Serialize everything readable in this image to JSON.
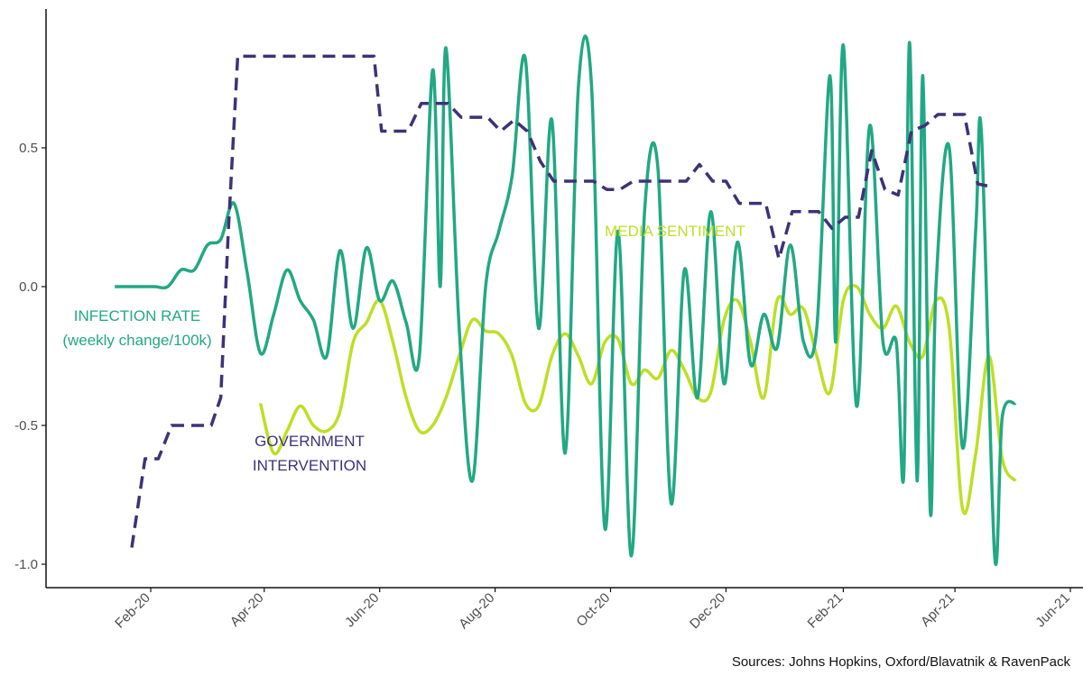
{
  "chart_data": {
    "type": "line",
    "title": "",
    "xlabel": "",
    "ylabel": "",
    "ylim": [
      -1.05,
      0.92
    ],
    "xlim": [
      "2020-01-01",
      "2021-06-01"
    ],
    "grid": false,
    "legend": "none (direct labels)",
    "y_ticks": [
      -1.0,
      -0.5,
      0.0,
      0.5
    ],
    "y_tick_labels": [
      "-1.0",
      "-0.5",
      "0.0",
      "0.5"
    ],
    "x_ticks": [
      "2020-02-01",
      "2020-04-01",
      "2020-06-01",
      "2020-08-01",
      "2020-10-01",
      "2020-12-01",
      "2021-02-01",
      "2021-04-01",
      "2021-06-01"
    ],
    "x_tick_labels": [
      "Feb-20",
      "Apr-20",
      "Jun-20",
      "Aug-20",
      "Oct-20",
      "Dec-20",
      "Feb-21",
      "Apr-21",
      "Jun-21"
    ],
    "series": [
      {
        "key": "infection",
        "label_lines": [
          "INFECTION RATE",
          "(weekly change/100k)"
        ],
        "color": "#22a884",
        "style": "solid",
        "points": [
          [
            "2020-01-13",
            0.0
          ],
          [
            "2020-01-20",
            0.0
          ],
          [
            "2020-01-27",
            0.0
          ],
          [
            "2020-02-03",
            0.0
          ],
          [
            "2020-02-10",
            0.0
          ],
          [
            "2020-02-17",
            0.06
          ],
          [
            "2020-02-24",
            0.06
          ],
          [
            "2020-03-02",
            0.15
          ],
          [
            "2020-03-09",
            0.17
          ],
          [
            "2020-03-16",
            0.3
          ],
          [
            "2020-03-23",
            0.05
          ],
          [
            "2020-03-30",
            -0.24
          ],
          [
            "2020-04-06",
            -0.1
          ],
          [
            "2020-04-13",
            0.06
          ],
          [
            "2020-04-20",
            -0.05
          ],
          [
            "2020-04-27",
            -0.12
          ],
          [
            "2020-05-04",
            -0.25
          ],
          [
            "2020-05-11",
            0.13
          ],
          [
            "2020-05-18",
            -0.15
          ],
          [
            "2020-05-25",
            0.14
          ],
          [
            "2020-06-01",
            -0.05
          ],
          [
            "2020-06-08",
            0.02
          ],
          [
            "2020-06-15",
            -0.13
          ],
          [
            "2020-06-22",
            -0.25
          ],
          [
            "2020-06-29",
            0.78
          ],
          [
            "2020-07-03",
            0.0
          ],
          [
            "2020-07-06",
            0.86
          ],
          [
            "2020-07-13",
            -0.15
          ],
          [
            "2020-07-20",
            -0.7
          ],
          [
            "2020-07-27",
            0.0
          ],
          [
            "2020-08-03",
            0.2
          ],
          [
            "2020-08-10",
            0.4
          ],
          [
            "2020-08-17",
            0.82
          ],
          [
            "2020-08-24",
            -0.15
          ],
          [
            "2020-08-31",
            0.6
          ],
          [
            "2020-09-07",
            -0.6
          ],
          [
            "2020-09-14",
            0.72
          ],
          [
            "2020-09-21",
            0.72
          ],
          [
            "2020-09-28",
            -0.87
          ],
          [
            "2020-10-05",
            0.2
          ],
          [
            "2020-10-12",
            -0.97
          ],
          [
            "2020-10-19",
            0.27
          ],
          [
            "2020-10-26",
            0.43
          ],
          [
            "2020-11-02",
            -0.78
          ],
          [
            "2020-11-09",
            0.06
          ],
          [
            "2020-11-16",
            -0.4
          ],
          [
            "2020-11-23",
            0.27
          ],
          [
            "2020-11-30",
            -0.35
          ],
          [
            "2020-12-07",
            0.16
          ],
          [
            "2020-12-14",
            -0.28
          ],
          [
            "2020-12-21",
            -0.1
          ],
          [
            "2020-12-28",
            -0.22
          ],
          [
            "2021-01-04",
            0.15
          ],
          [
            "2021-01-11",
            -0.2
          ],
          [
            "2021-01-18",
            -0.15
          ],
          [
            "2021-01-25",
            0.76
          ],
          [
            "2021-01-28",
            -0.2
          ],
          [
            "2021-02-01",
            0.87
          ],
          [
            "2021-02-08",
            -0.43
          ],
          [
            "2021-02-15",
            0.58
          ],
          [
            "2021-02-22",
            -0.2
          ],
          [
            "2021-03-01",
            -0.2
          ],
          [
            "2021-03-05",
            -0.67
          ],
          [
            "2021-03-08",
            0.88
          ],
          [
            "2021-03-12",
            -0.7
          ],
          [
            "2021-03-15",
            0.76
          ],
          [
            "2021-03-19",
            -0.81
          ],
          [
            "2021-03-22",
            0.0
          ],
          [
            "2021-03-29",
            0.5
          ],
          [
            "2021-04-05",
            -0.58
          ],
          [
            "2021-04-12",
            0.21
          ],
          [
            "2021-04-15",
            0.55
          ],
          [
            "2021-04-22",
            -0.97
          ],
          [
            "2021-04-26",
            -0.47
          ],
          [
            "2021-05-03",
            -0.42
          ]
        ]
      },
      {
        "key": "government",
        "label_lines": [
          "GOVERNMENT",
          "INTERVENTION"
        ],
        "color": "#3e3278",
        "style": "dashed",
        "points": [
          [
            "2020-01-22",
            -0.94
          ],
          [
            "2020-01-29",
            -0.62
          ],
          [
            "2020-02-05",
            -0.62
          ],
          [
            "2020-02-12",
            -0.5
          ],
          [
            "2020-02-19",
            -0.5
          ],
          [
            "2020-02-26",
            -0.5
          ],
          [
            "2020-03-04",
            -0.5
          ],
          [
            "2020-03-09",
            -0.4
          ],
          [
            "2020-03-13",
            0.2
          ],
          [
            "2020-03-18",
            0.83
          ],
          [
            "2020-05-29",
            0.83
          ],
          [
            "2020-06-02",
            0.56
          ],
          [
            "2020-06-09",
            0.56
          ],
          [
            "2020-06-16",
            0.56
          ],
          [
            "2020-06-23",
            0.66
          ],
          [
            "2020-06-30",
            0.66
          ],
          [
            "2020-07-07",
            0.66
          ],
          [
            "2020-07-14",
            0.61
          ],
          [
            "2020-07-21",
            0.61
          ],
          [
            "2020-07-28",
            0.61
          ],
          [
            "2020-08-04",
            0.56
          ],
          [
            "2020-08-11",
            0.6
          ],
          [
            "2020-08-18",
            0.56
          ],
          [
            "2020-08-25",
            0.45
          ],
          [
            "2020-09-01",
            0.38
          ],
          [
            "2020-09-08",
            0.38
          ],
          [
            "2020-09-15",
            0.38
          ],
          [
            "2020-09-22",
            0.38
          ],
          [
            "2020-09-29",
            0.35
          ],
          [
            "2020-10-06",
            0.35
          ],
          [
            "2020-10-13",
            0.38
          ],
          [
            "2020-10-20",
            0.38
          ],
          [
            "2020-10-27",
            0.38
          ],
          [
            "2020-11-03",
            0.38
          ],
          [
            "2020-11-10",
            0.38
          ],
          [
            "2020-11-17",
            0.44
          ],
          [
            "2020-11-24",
            0.38
          ],
          [
            "2020-12-01",
            0.38
          ],
          [
            "2020-12-08",
            0.3
          ],
          [
            "2020-12-15",
            0.3
          ],
          [
            "2020-12-22",
            0.3
          ],
          [
            "2020-12-29",
            0.1
          ],
          [
            "2021-01-05",
            0.27
          ],
          [
            "2021-01-12",
            0.27
          ],
          [
            "2021-01-19",
            0.27
          ],
          [
            "2021-01-26",
            0.21
          ],
          [
            "2021-02-02",
            0.25
          ],
          [
            "2021-02-09",
            0.25
          ],
          [
            "2021-02-16",
            0.49
          ],
          [
            "2021-02-23",
            0.35
          ],
          [
            "2021-03-02",
            0.33
          ],
          [
            "2021-03-09",
            0.56
          ],
          [
            "2021-03-16",
            0.58
          ],
          [
            "2021-03-23",
            0.62
          ],
          [
            "2021-03-30",
            0.62
          ],
          [
            "2021-04-06",
            0.62
          ],
          [
            "2021-04-13",
            0.37
          ],
          [
            "2021-04-20",
            0.36
          ]
        ]
      },
      {
        "key": "media",
        "label_lines": [
          "MEDIA SENTIMENT"
        ],
        "color": "#bddf26",
        "style": "solid",
        "points": [
          [
            "2020-03-30",
            -0.42
          ],
          [
            "2020-04-06",
            -0.6
          ],
          [
            "2020-04-13",
            -0.52
          ],
          [
            "2020-04-20",
            -0.43
          ],
          [
            "2020-04-27",
            -0.5
          ],
          [
            "2020-05-04",
            -0.52
          ],
          [
            "2020-05-11",
            -0.45
          ],
          [
            "2020-05-18",
            -0.2
          ],
          [
            "2020-05-25",
            -0.13
          ],
          [
            "2020-06-01",
            -0.05
          ],
          [
            "2020-06-08",
            -0.2
          ],
          [
            "2020-06-15",
            -0.4
          ],
          [
            "2020-06-22",
            -0.52
          ],
          [
            "2020-06-29",
            -0.5
          ],
          [
            "2020-07-06",
            -0.4
          ],
          [
            "2020-07-13",
            -0.25
          ],
          [
            "2020-07-20",
            -0.12
          ],
          [
            "2020-07-27",
            -0.16
          ],
          [
            "2020-08-03",
            -0.17
          ],
          [
            "2020-08-10",
            -0.25
          ],
          [
            "2020-08-17",
            -0.42
          ],
          [
            "2020-08-24",
            -0.43
          ],
          [
            "2020-08-31",
            -0.25
          ],
          [
            "2020-09-07",
            -0.17
          ],
          [
            "2020-09-14",
            -0.25
          ],
          [
            "2020-09-21",
            -0.35
          ],
          [
            "2020-09-28",
            -0.2
          ],
          [
            "2020-10-05",
            -0.19
          ],
          [
            "2020-10-12",
            -0.35
          ],
          [
            "2020-10-19",
            -0.3
          ],
          [
            "2020-10-26",
            -0.33
          ],
          [
            "2020-11-02",
            -0.23
          ],
          [
            "2020-11-09",
            -0.3
          ],
          [
            "2020-11-16",
            -0.4
          ],
          [
            "2020-11-23",
            -0.38
          ],
          [
            "2020-11-30",
            -0.12
          ],
          [
            "2020-12-07",
            -0.05
          ],
          [
            "2020-12-14",
            -0.2
          ],
          [
            "2020-12-21",
            -0.4
          ],
          [
            "2020-12-28",
            -0.05
          ],
          [
            "2021-01-04",
            -0.1
          ],
          [
            "2021-01-11",
            -0.08
          ],
          [
            "2021-01-18",
            -0.25
          ],
          [
            "2021-01-25",
            -0.38
          ],
          [
            "2021-02-01",
            -0.05
          ],
          [
            "2021-02-08",
            0.0
          ],
          [
            "2021-02-15",
            -0.1
          ],
          [
            "2021-02-22",
            -0.15
          ],
          [
            "2021-03-01",
            -0.07
          ],
          [
            "2021-03-08",
            -0.2
          ],
          [
            "2021-03-15",
            -0.25
          ],
          [
            "2021-03-22",
            -0.05
          ],
          [
            "2021-03-29",
            -0.15
          ],
          [
            "2021-04-05",
            -0.8
          ],
          [
            "2021-04-12",
            -0.6
          ],
          [
            "2021-04-19",
            -0.25
          ],
          [
            "2021-04-26",
            -0.62
          ],
          [
            "2021-05-03",
            -0.7
          ]
        ]
      }
    ]
  },
  "source_text": "Sources: Johns Hopkins, Oxford/Blavatnik & RavenPack"
}
